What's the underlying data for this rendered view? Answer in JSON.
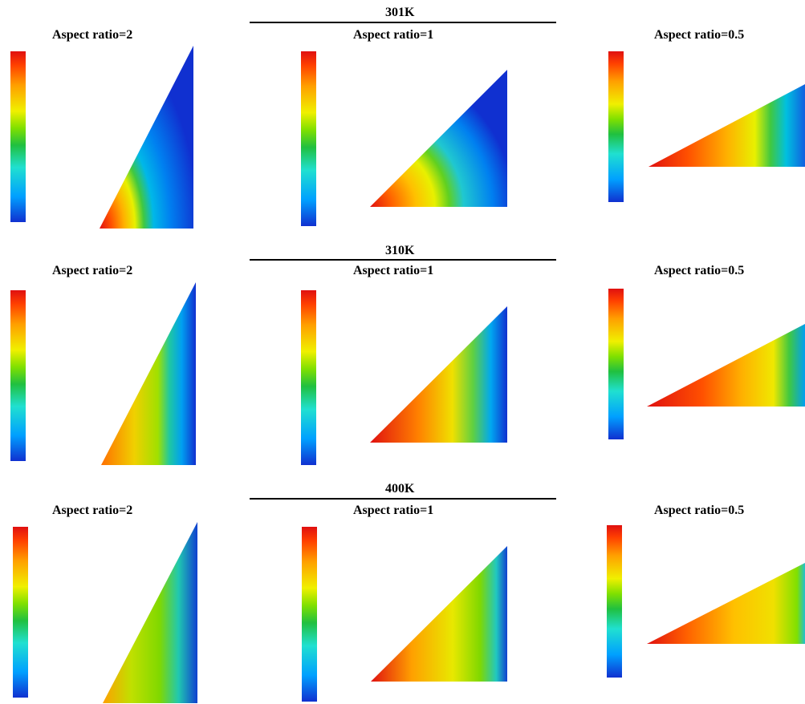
{
  "rows": [
    {
      "temperature": "301K",
      "panels": [
        {
          "label": "Aspect ratio=2"
        },
        {
          "label": "Aspect ratio=1"
        },
        {
          "label": "Aspect ratio=0.5"
        }
      ]
    },
    {
      "temperature": "310K",
      "panels": [
        {
          "label": "Aspect ratio=2"
        },
        {
          "label": "Aspect ratio=1"
        },
        {
          "label": "Aspect ratio=0.5"
        }
      ]
    },
    {
      "temperature": "400K",
      "panels": [
        {
          "label": "Aspect ratio=2"
        },
        {
          "label": "Aspect ratio=1"
        },
        {
          "label": "Aspect ratio=0.5"
        }
      ]
    }
  ],
  "colormap": [
    "#1030d0",
    "#00a0ff",
    "#20e0d0",
    "#20c040",
    "#80e000",
    "#f0f000",
    "#ffa000",
    "#ff4000",
    "#e01010"
  ]
}
